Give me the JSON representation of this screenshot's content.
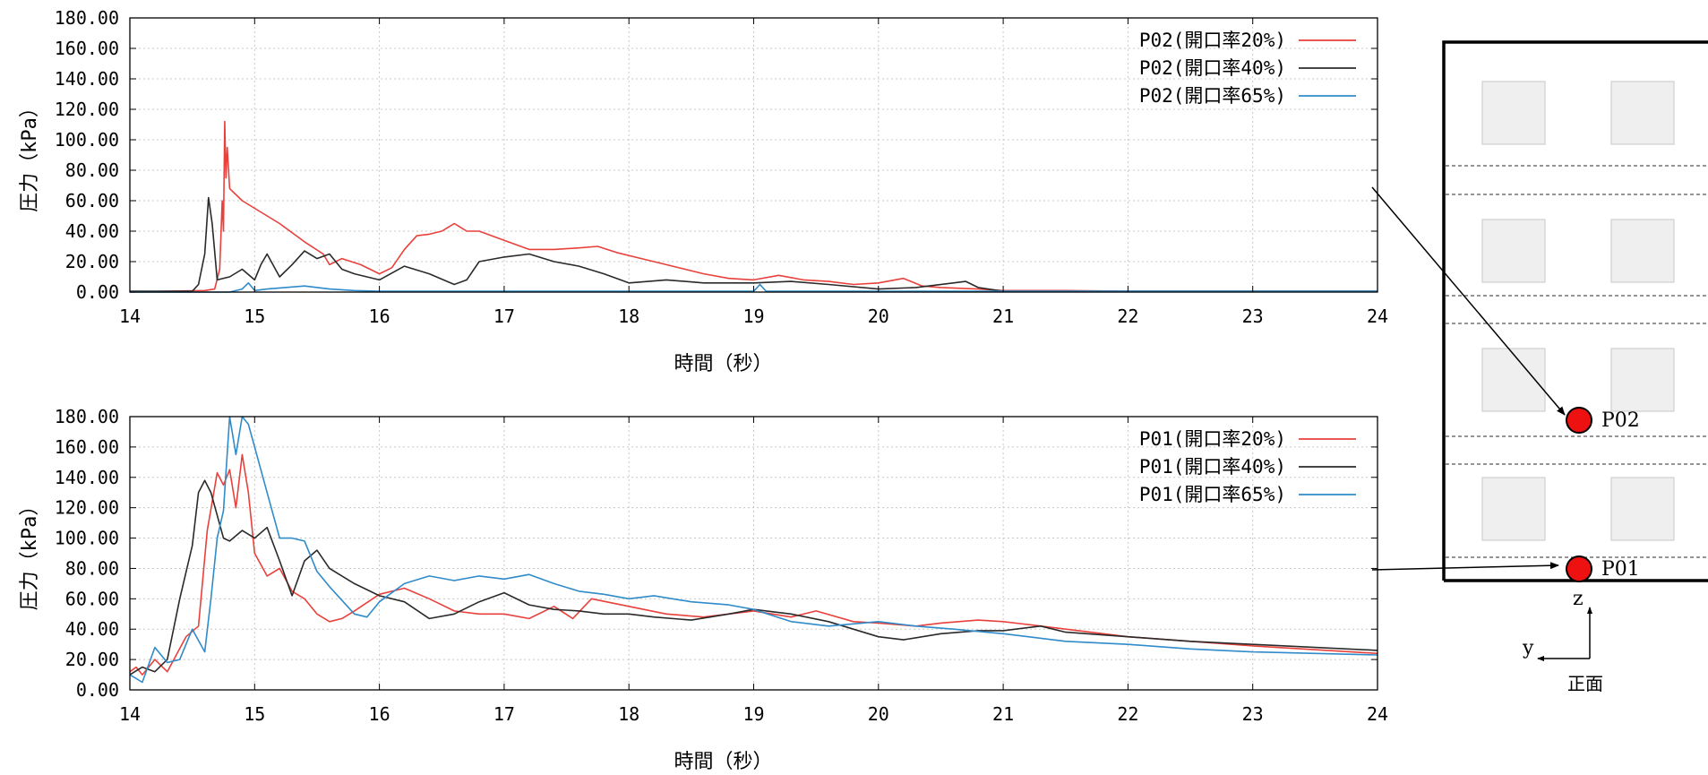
{
  "chart_data": [
    {
      "type": "line",
      "title": "",
      "xlabel": "時間（秒）",
      "ylabel": "圧力（kPa）",
      "xlim": [
        14,
        24
      ],
      "ylim": [
        0,
        180
      ],
      "xticks": [
        "14",
        "15",
        "16",
        "17",
        "18",
        "19",
        "20",
        "21",
        "22",
        "23",
        "24"
      ],
      "yticks": [
        "0.00",
        "20.00",
        "40.00",
        "60.00",
        "80.00",
        "100.00",
        "120.00",
        "140.00",
        "160.00",
        "180.00"
      ],
      "grid": true,
      "legend_position": "top-right",
      "series": [
        {
          "name": "P02(開口率20%)",
          "color": "#e8413c",
          "x": [
            14.0,
            14.3,
            14.6,
            14.68,
            14.72,
            14.74,
            14.75,
            14.76,
            14.77,
            14.78,
            14.8,
            14.9,
            15.0,
            15.2,
            15.4,
            15.55,
            15.6,
            15.7,
            15.85,
            16.0,
            16.1,
            16.2,
            16.3,
            16.4,
            16.5,
            16.6,
            16.7,
            16.8,
            16.9,
            17.0,
            17.2,
            17.4,
            17.6,
            17.75,
            17.9,
            18.1,
            18.3,
            18.6,
            18.8,
            19.0,
            19.2,
            19.4,
            19.6,
            19.8,
            20.0,
            20.2,
            20.35,
            20.5,
            20.8,
            21.0,
            21.3,
            21.5,
            22.0,
            24.0
          ],
          "y": [
            0,
            0.5,
            1,
            2,
            15,
            60,
            40,
            112,
            75,
            95,
            68,
            60,
            55,
            45,
            33,
            25,
            18,
            22,
            18,
            12,
            16,
            28,
            37,
            38,
            40,
            45,
            40,
            40,
            37,
            34,
            28,
            28,
            29,
            30,
            26,
            22,
            18,
            12,
            9,
            8,
            11,
            8,
            7,
            5,
            6,
            9,
            4,
            3,
            2,
            1,
            1,
            1,
            0.5,
            0.5
          ]
        },
        {
          "name": "P02(開口率40%)",
          "color": "#2a2a2a",
          "x": [
            14.0,
            14.5,
            14.55,
            14.6,
            14.63,
            14.66,
            14.7,
            14.8,
            14.9,
            15.0,
            15.05,
            15.1,
            15.2,
            15.3,
            15.4,
            15.5,
            15.6,
            15.7,
            15.8,
            16.0,
            16.2,
            16.4,
            16.6,
            16.7,
            16.8,
            17.0,
            17.2,
            17.4,
            17.6,
            17.8,
            18.0,
            18.3,
            18.6,
            19.0,
            19.3,
            19.6,
            20.0,
            20.3,
            20.6,
            20.7,
            20.8,
            21.0,
            24.0
          ],
          "y": [
            0.5,
            0.5,
            5,
            25,
            62,
            45,
            8,
            10,
            15,
            8,
            18,
            25,
            10,
            18,
            27,
            22,
            25,
            15,
            12,
            8,
            17,
            12,
            5,
            8,
            20,
            23,
            25,
            20,
            17,
            12,
            6,
            8,
            6,
            6,
            7,
            5,
            2,
            3,
            6,
            7,
            3,
            0.5,
            0.5
          ]
        },
        {
          "name": "P02(開口率65%)",
          "color": "#2f8bc9",
          "x": [
            14.0,
            14.8,
            14.9,
            14.95,
            15.0,
            15.1,
            15.4,
            15.6,
            15.8,
            16.0,
            19.0,
            19.05,
            19.1,
            20.0,
            24.0
          ],
          "y": [
            0,
            0,
            2,
            6,
            1,
            2,
            4,
            2,
            1,
            0.5,
            0.5,
            5,
            0.5,
            0.5,
            0.5
          ]
        }
      ]
    },
    {
      "type": "line",
      "title": "",
      "xlabel": "時間（秒）",
      "ylabel": "圧力（kPa）",
      "xlim": [
        14,
        24
      ],
      "ylim": [
        0,
        180
      ],
      "xticks": [
        "14",
        "15",
        "16",
        "17",
        "18",
        "19",
        "20",
        "21",
        "22",
        "23",
        "24"
      ],
      "yticks": [
        "0.00",
        "20.00",
        "40.00",
        "60.00",
        "80.00",
        "100.00",
        "120.00",
        "140.00",
        "160.00",
        "180.00"
      ],
      "grid": true,
      "legend_position": "top-right",
      "series": [
        {
          "name": "P01(開口率20%)",
          "color": "#e8413c",
          "x": [
            14.0,
            14.05,
            14.1,
            14.2,
            14.3,
            14.45,
            14.55,
            14.62,
            14.7,
            14.75,
            14.8,
            14.85,
            14.9,
            14.95,
            15.0,
            15.1,
            15.2,
            15.3,
            15.4,
            15.5,
            15.6,
            15.7,
            15.8,
            16.0,
            16.2,
            16.4,
            16.6,
            16.8,
            17.0,
            17.2,
            17.4,
            17.55,
            17.7,
            18.0,
            18.3,
            18.6,
            19.0,
            19.3,
            19.5,
            19.8,
            20.0,
            20.3,
            20.5,
            20.8,
            21.0,
            21.2,
            21.5,
            22.0,
            22.5,
            23.0,
            24.0
          ],
          "y": [
            12,
            15,
            10,
            20,
            12,
            35,
            42,
            105,
            143,
            135,
            145,
            120,
            155,
            130,
            90,
            75,
            80,
            65,
            60,
            50,
            45,
            47,
            52,
            63,
            67,
            60,
            52,
            50,
            50,
            47,
            55,
            47,
            60,
            55,
            50,
            48,
            52,
            48,
            52,
            45,
            44,
            42,
            44,
            46,
            45,
            43,
            40,
            35,
            32,
            29,
            24
          ]
        },
        {
          "name": "P01(開口率40%)",
          "color": "#2a2a2a",
          "x": [
            14.0,
            14.1,
            14.2,
            14.3,
            14.4,
            14.5,
            14.55,
            14.6,
            14.65,
            14.75,
            14.8,
            14.9,
            15.0,
            15.1,
            15.2,
            15.3,
            15.4,
            15.5,
            15.6,
            15.8,
            16.0,
            16.2,
            16.4,
            16.6,
            16.8,
            17.0,
            17.2,
            17.4,
            17.6,
            17.8,
            18.0,
            18.2,
            18.5,
            18.8,
            19.0,
            19.3,
            19.6,
            20.0,
            20.2,
            20.5,
            20.8,
            21.0,
            21.3,
            21.5,
            22.0,
            22.5,
            23.0,
            23.5,
            24.0
          ],
          "y": [
            10,
            15,
            12,
            20,
            60,
            95,
            130,
            138,
            130,
            100,
            98,
            105,
            100,
            107,
            85,
            62,
            85,
            92,
            80,
            70,
            62,
            58,
            47,
            50,
            58,
            64,
            56,
            53,
            52,
            50,
            50,
            48,
            46,
            50,
            53,
            50,
            45,
            35,
            33,
            37,
            39,
            39,
            42,
            38,
            35,
            32,
            30,
            28,
            26
          ]
        },
        {
          "name": "P01(開口率65%)",
          "color": "#2f8bc9",
          "x": [
            14.0,
            14.1,
            14.2,
            14.3,
            14.4,
            14.5,
            14.6,
            14.65,
            14.7,
            14.75,
            14.8,
            14.85,
            14.9,
            14.95,
            15.0,
            15.1,
            15.2,
            15.3,
            15.4,
            15.5,
            15.6,
            15.8,
            15.9,
            16.0,
            16.2,
            16.4,
            16.6,
            16.8,
            17.0,
            17.2,
            17.4,
            17.6,
            17.8,
            18.0,
            18.2,
            18.5,
            18.8,
            19.0,
            19.3,
            19.6,
            20.0,
            20.3,
            20.6,
            21.0,
            21.5,
            22.0,
            22.5,
            23.0,
            23.5,
            24.0
          ],
          "y": [
            10,
            5,
            28,
            18,
            20,
            40,
            25,
            60,
            100,
            118,
            182,
            155,
            180,
            175,
            160,
            130,
            100,
            100,
            98,
            78,
            68,
            50,
            48,
            58,
            70,
            75,
            72,
            75,
            73,
            76,
            70,
            65,
            63,
            60,
            62,
            58,
            56,
            53,
            45,
            42,
            45,
            42,
            40,
            37,
            32,
            30,
            27,
            25,
            24,
            23
          ]
        }
      ]
    }
  ],
  "diagram": {
    "points": [
      {
        "label": "P02"
      },
      {
        "label": "P01"
      }
    ],
    "axis_z": "z",
    "axis_y": "y",
    "view_label": "正面",
    "marker_color": "#ee1111",
    "window_color": "#efefef"
  }
}
